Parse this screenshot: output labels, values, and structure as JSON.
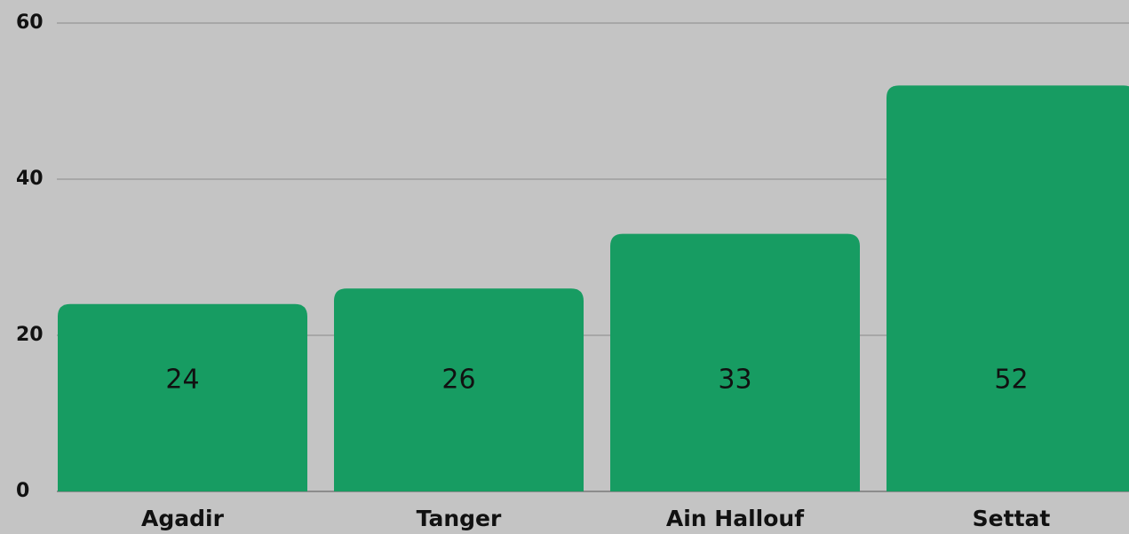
{
  "chart_data": {
    "type": "bar",
    "categories": [
      "Agadir",
      "Tanger",
      "Ain Hallouf",
      "Settat"
    ],
    "values": [
      24,
      26,
      33,
      52
    ],
    "color": "#179c62",
    "ylim": [
      0,
      60
    ],
    "yticks": [
      0,
      20,
      40,
      60
    ],
    "grid": true
  }
}
